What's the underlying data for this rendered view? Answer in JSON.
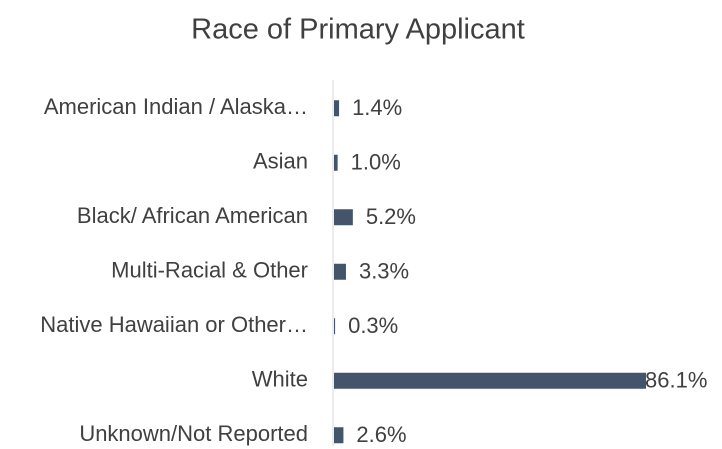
{
  "chart_data": {
    "type": "bar",
    "orientation": "horizontal",
    "title": "Race of Primary Applicant",
    "categories": [
      "American Indian / Alaska…",
      "Asian",
      "Black/ African American",
      "Multi-Racial & Other",
      "Native Hawaiian or Other…",
      "White",
      "Unknown/Not Reported"
    ],
    "values": [
      1.4,
      1.0,
      5.2,
      3.3,
      0.3,
      86.1,
      2.6
    ],
    "value_labels": [
      "1.4%",
      "1.0%",
      "5.2%",
      "3.3%",
      "0.3%",
      "86.1%",
      "2.6%"
    ],
    "color": "#44546a"
  }
}
